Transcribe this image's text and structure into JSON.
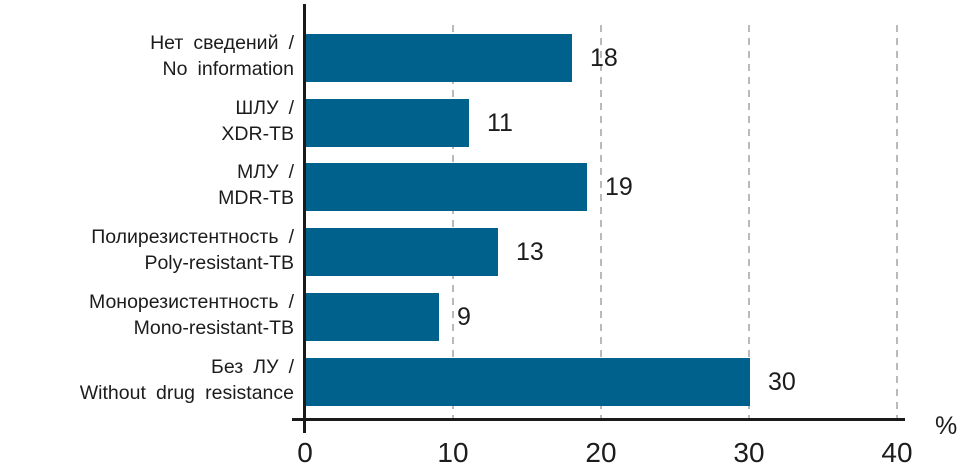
{
  "chart_data": {
    "type": "bar",
    "orientation": "horizontal",
    "title": "",
    "categories": [
      {
        "lines": [
          "Нет сведений /",
          "No information"
        ]
      },
      {
        "lines": [
          "ШЛУ /",
          "XDR-TB"
        ]
      },
      {
        "lines": [
          "МЛУ /",
          "MDR-TB"
        ]
      },
      {
        "lines": [
          "Полирезистентность /",
          "Poly-resistant-TB"
        ]
      },
      {
        "lines": [
          "Монорезистентность /",
          "Mono-resistant-TB"
        ]
      },
      {
        "lines": [
          "Без ЛУ /",
          "Without drug resistance"
        ]
      }
    ],
    "values": [
      18,
      11,
      19,
      13,
      9,
      30
    ],
    "value_labels": [
      "18",
      "11",
      "19",
      "13",
      "9",
      "30"
    ],
    "x_axis": {
      "min": 0,
      "max": 40,
      "ticks": [
        0,
        10,
        20,
        30,
        40
      ],
      "tick_labels": [
        "0",
        "10",
        "20",
        "30",
        "40"
      ],
      "unit_label": "%"
    },
    "grid": {
      "show": true,
      "style": "dashed",
      "positions": [
        10,
        20,
        30,
        40
      ]
    },
    "legend": null,
    "colors": {
      "bar": "#00618C",
      "axis": "#1a1a1a",
      "text": "#1c1c1c",
      "gridline": "#b9b9be"
    }
  }
}
